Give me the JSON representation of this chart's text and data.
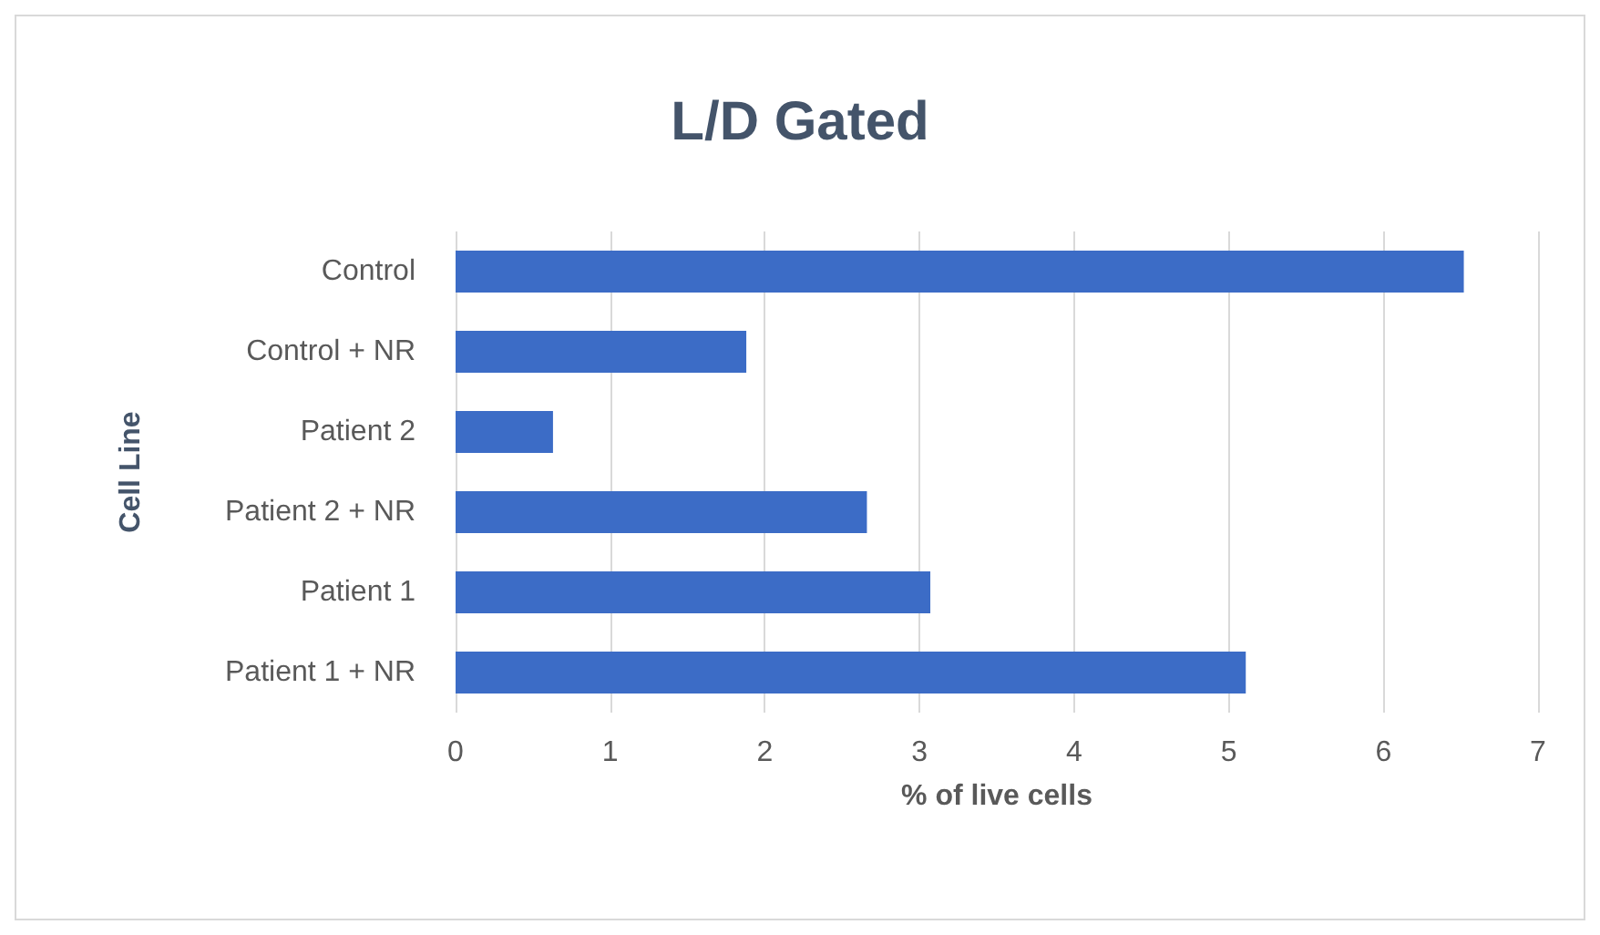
{
  "chart_data": {
    "type": "bar",
    "orientation": "horizontal",
    "title": "L/D Gated",
    "xlabel": "% of live cells",
    "ylabel": "Cell Line",
    "categories": [
      "Control",
      "Control + NR",
      "Patient 2",
      "Patient 2 + NR",
      "Patient 1",
      "Patient 1 + NR"
    ],
    "values": [
      6.52,
      1.88,
      0.63,
      2.66,
      3.07,
      5.11
    ],
    "color": "#3c6cc6",
    "xlim": [
      0,
      7
    ],
    "xticks": [
      0,
      1,
      2,
      3,
      4,
      5,
      6,
      7
    ],
    "grid": "x"
  }
}
